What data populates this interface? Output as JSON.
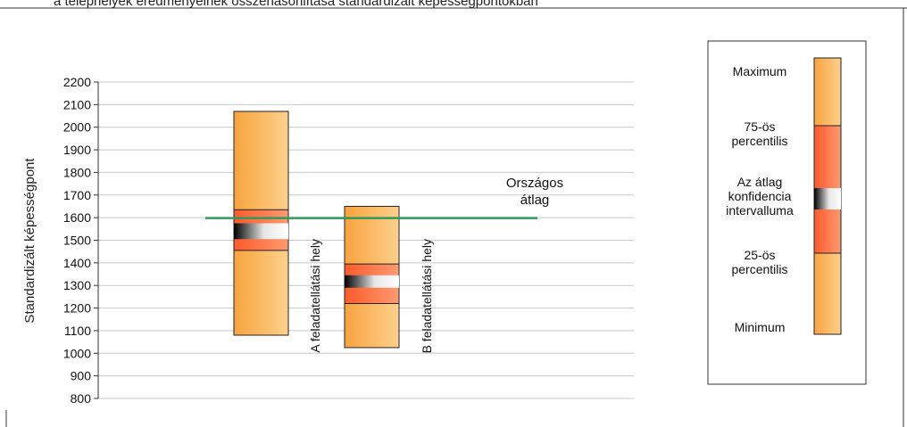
{
  "header_text": "a telephelyek eredményeinek összehasonlítása standardizált képességpontokban",
  "chart_data": {
    "type": "boxplot",
    "ylabel": "Standardizált képességpont",
    "ylim": [
      800,
      2200
    ],
    "yticks": [
      800,
      900,
      1000,
      1100,
      1200,
      1300,
      1400,
      1500,
      1600,
      1700,
      1800,
      1900,
      2000,
      2100,
      2200
    ],
    "grid": true,
    "categories": [
      "A feladatellátási hely",
      "B feladatellátási hely"
    ],
    "boxes": [
      {
        "label": "A feladatellátási hely",
        "min": 1080,
        "p25": 1455,
        "ci_low": 1505,
        "ci_high": 1575,
        "p75": 1635,
        "max": 2070
      },
      {
        "label": "B feladatellátási hely",
        "min": 1025,
        "p25": 1220,
        "ci_low": 1290,
        "ci_high": 1345,
        "p75": 1395,
        "max": 1650
      }
    ],
    "reference_line": {
      "value": 1598,
      "label_line1": "Országos",
      "label_line2": "átlag",
      "color": "#2e9a5e"
    },
    "colors": {
      "range": "#fbb55f",
      "iqr": "#fd6a3a",
      "ci_dark": "#000000",
      "ci_light": "#ffffff",
      "grid": "#c8c8c8",
      "outline": "#222222"
    },
    "legend": {
      "placement": "right",
      "items": {
        "max": "Maximum",
        "p75_line1": "75-ös",
        "p75_line2": "percentilis",
        "ci_line1": "Az átlag",
        "ci_line2": "konfidencia",
        "ci_line3": "intervalluma",
        "p25_line1": "25-ös",
        "p25_line2": "percentilis",
        "min": "Minimum"
      }
    }
  }
}
